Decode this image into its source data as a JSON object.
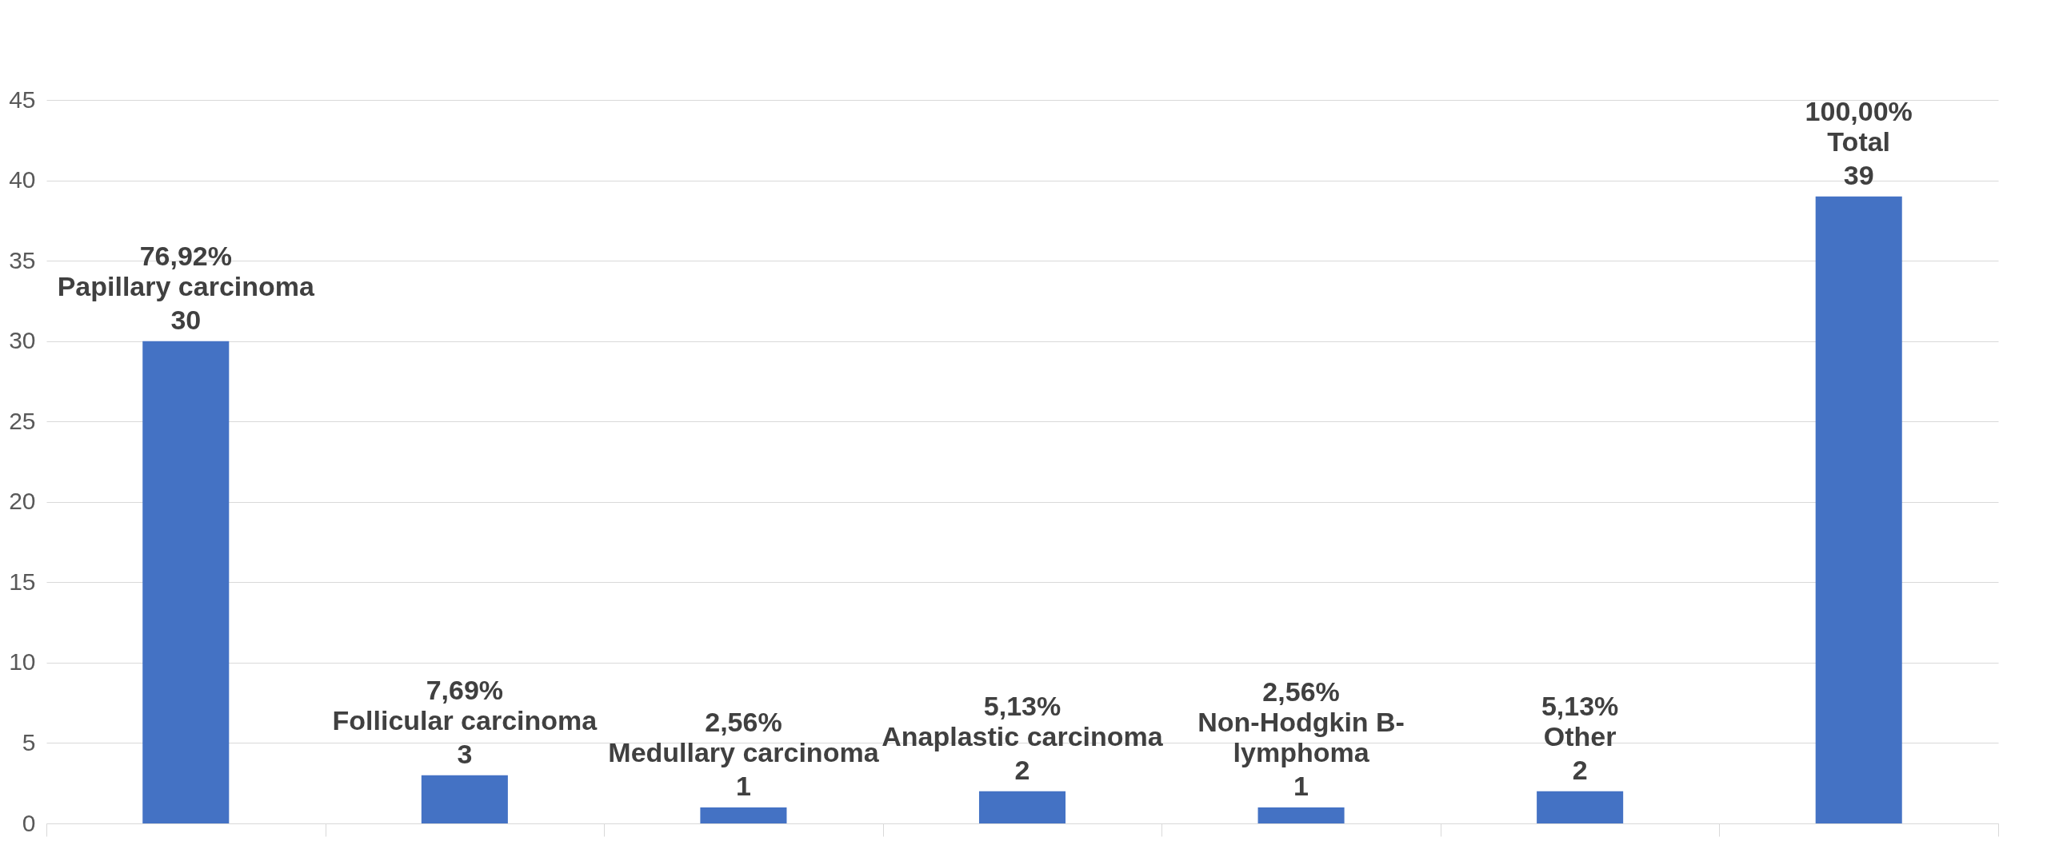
{
  "chart_data": {
    "type": "bar",
    "categories": [
      "Papillary carcinoma",
      "Follicular carcinoma",
      "Medullary carcinoma",
      "Anaplastic carcinoma",
      "Non-Hodgkin B-lymphoma",
      "Other",
      "Total"
    ],
    "values": [
      30,
      3,
      1,
      2,
      1,
      2,
      39
    ],
    "color": "#4472c4",
    "ylim": [
      0,
      45
    ],
    "yticks": [
      0,
      5,
      10,
      15,
      20,
      25,
      30,
      35,
      40,
      45
    ],
    "grid": "y",
    "data_labels": true,
    "tick_labels": "y",
    "annotations": [
      "76,92%",
      "7,69%",
      "2,56%",
      "5,13%",
      "2,56%",
      "5,13%",
      "100,00%"
    ]
  }
}
